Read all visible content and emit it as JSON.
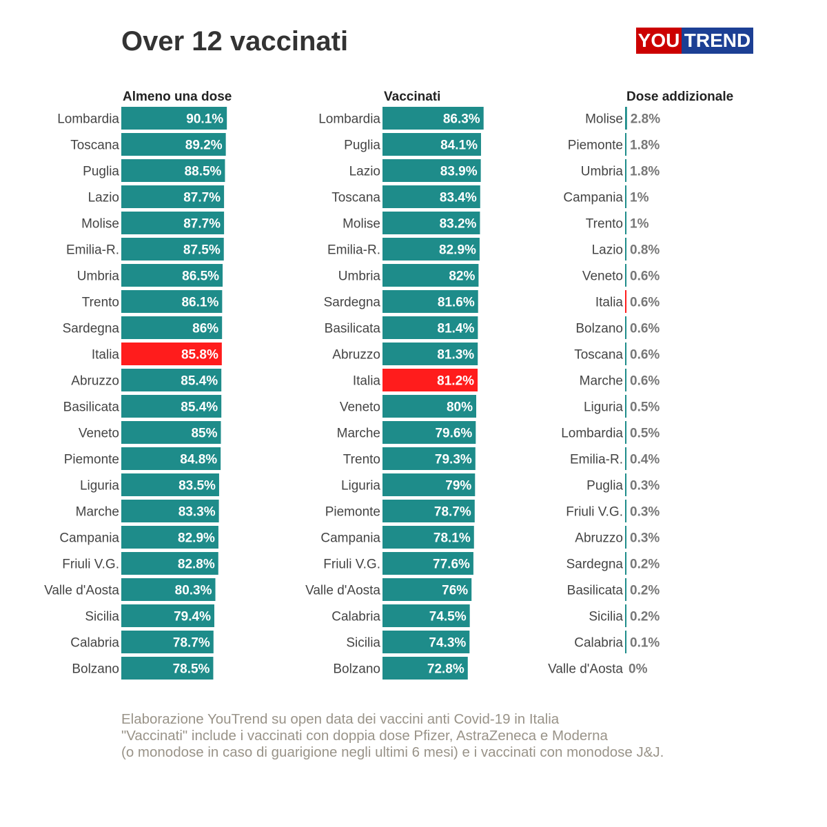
{
  "title": "Over 12 vaccinati",
  "logo": {
    "part1": "YOU",
    "part2": "TREND"
  },
  "colors": {
    "bar": "#1e8c8a",
    "highlight": "#ff1c1c",
    "label": "#444444",
    "value_outside": "#777777",
    "value_inside": "#ffffff",
    "header": "#222222"
  },
  "chart_data": [
    {
      "type": "bar",
      "orientation": "horizontal",
      "title": "Almeno una dose",
      "unit": "%",
      "highlight": "Italia",
      "categories": [
        "Lombardia",
        "Toscana",
        "Puglia",
        "Lazio",
        "Molise",
        "Emilia-R.",
        "Umbria",
        "Trento",
        "Sardegna",
        "Italia",
        "Abruzzo",
        "Basilicata",
        "Veneto",
        "Piemonte",
        "Liguria",
        "Marche",
        "Campania",
        "Friuli V.G.",
        "Valle d'Aosta",
        "Sicilia",
        "Calabria",
        "Bolzano"
      ],
      "values": [
        90.1,
        89.2,
        88.5,
        87.7,
        87.7,
        87.5,
        86.5,
        86.1,
        86,
        85.8,
        85.4,
        85.4,
        85,
        84.8,
        83.5,
        83.3,
        82.9,
        82.8,
        80.3,
        79.4,
        78.7,
        78.5
      ],
      "labels": [
        "90.1%",
        "89.2%",
        "88.5%",
        "87.7%",
        "87.7%",
        "87.5%",
        "86.5%",
        "86.1%",
        "86%",
        "85.8%",
        "85.4%",
        "85.4%",
        "85%",
        "84.8%",
        "83.5%",
        "83.3%",
        "82.9%",
        "82.8%",
        "80.3%",
        "79.4%",
        "78.7%",
        "78.5%"
      ],
      "xlim": [
        0,
        100
      ]
    },
    {
      "type": "bar",
      "orientation": "horizontal",
      "title": "Vaccinati",
      "unit": "%",
      "highlight": "Italia",
      "categories": [
        "Lombardia",
        "Puglia",
        "Lazio",
        "Toscana",
        "Molise",
        "Emilia-R.",
        "Umbria",
        "Sardegna",
        "Basilicata",
        "Abruzzo",
        "Italia",
        "Veneto",
        "Marche",
        "Trento",
        "Liguria",
        "Piemonte",
        "Campania",
        "Friuli V.G.",
        "Valle d'Aosta",
        "Calabria",
        "Sicilia",
        "Bolzano"
      ],
      "values": [
        86.3,
        84.1,
        83.9,
        83.4,
        83.2,
        82.9,
        82,
        81.6,
        81.4,
        81.3,
        81.2,
        80,
        79.6,
        79.3,
        79,
        78.7,
        78.1,
        77.6,
        76,
        74.5,
        74.3,
        72.8
      ],
      "labels": [
        "86.3%",
        "84.1%",
        "83.9%",
        "83.4%",
        "83.2%",
        "82.9%",
        "82%",
        "81.6%",
        "81.4%",
        "81.3%",
        "81.2%",
        "80%",
        "79.6%",
        "79.3%",
        "79%",
        "78.7%",
        "78.1%",
        "77.6%",
        "76%",
        "74.5%",
        "74.3%",
        "72.8%"
      ],
      "xlim": [
        0,
        100
      ]
    },
    {
      "type": "bar",
      "orientation": "horizontal",
      "title": "Dose addizionale",
      "unit": "%",
      "highlight": "Italia",
      "categories": [
        "Molise",
        "Piemonte",
        "Umbria",
        "Campania",
        "Trento",
        "Lazio",
        "Veneto",
        "Italia",
        "Bolzano",
        "Toscana",
        "Marche",
        "Liguria",
        "Lombardia",
        "Emilia-R.",
        "Puglia",
        "Friuli V.G.",
        "Abruzzo",
        "Sardegna",
        "Basilicata",
        "Sicilia",
        "Calabria",
        "Valle d'Aosta"
      ],
      "values": [
        2.8,
        1.8,
        1.8,
        1,
        1,
        0.8,
        0.6,
        0.6,
        0.6,
        0.6,
        0.6,
        0.5,
        0.5,
        0.4,
        0.3,
        0.3,
        0.3,
        0.2,
        0.2,
        0.2,
        0.1,
        0
      ],
      "labels": [
        "2.8%",
        "1.8%",
        "1.8%",
        "1%",
        "1%",
        "0.8%",
        "0.6%",
        "0.6%",
        "0.6%",
        "0.6%",
        "0.6%",
        "0.5%",
        "0.5%",
        "0.4%",
        "0.3%",
        "0.3%",
        "0.3%",
        "0.2%",
        "0.2%",
        "0.2%",
        "0.1%",
        "0%"
      ],
      "xlim": [
        0,
        100
      ]
    }
  ],
  "footer": {
    "line1": "Elaborazione YouTrend su open data dei vaccini anti Covid-19 in Italia",
    "line2": "\"Vaccinati\" include i vaccinati con doppia dose Pfizer, AstraZeneca e Moderna",
    "line3": "(o monodose in caso di guarigione negli ultimi 6 mesi) e i vaccinati con monodose J&J."
  }
}
